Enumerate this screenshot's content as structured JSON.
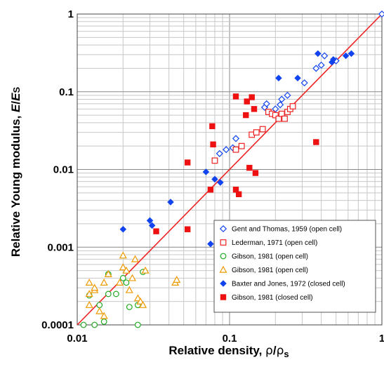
{
  "chart_data": {
    "type": "scatter",
    "x_scale": "log",
    "y_scale": "log",
    "xlim": [
      0.01,
      1
    ],
    "ylim": [
      0.0001,
      1
    ],
    "grid": true,
    "legend_position": "bottom-right",
    "x_ticks": [
      "0.01",
      "0.1",
      "1"
    ],
    "y_ticks": [
      "0.0001",
      "0.001",
      "0.01",
      "0.1",
      "1"
    ],
    "xlabel_parts": {
      "main": "Relative density, ",
      "rho": "ρ",
      "slash": "/",
      "rho_s": "ρ",
      "sub": "s"
    },
    "ylabel_parts": {
      "main": "Relative Young modulus, ",
      "e": "E",
      "slash": "/",
      "es": "E",
      "sub": "S"
    },
    "fit_line": {
      "from": [
        0.01,
        0.0001
      ],
      "to": [
        1,
        1
      ],
      "color": "#ee2222"
    },
    "series": [
      {
        "name": "Gent and Thomas, 1959 (open cell)",
        "marker": "diamond-open",
        "color": "#1144ee",
        "points": [
          [
            0.086,
            0.016
          ],
          [
            0.095,
            0.018
          ],
          [
            0.105,
            0.019
          ],
          [
            0.11,
            0.025
          ],
          [
            0.17,
            0.063
          ],
          [
            0.175,
            0.07
          ],
          [
            0.2,
            0.06
          ],
          [
            0.215,
            0.068
          ],
          [
            0.22,
            0.08
          ],
          [
            0.24,
            0.09
          ],
          [
            0.31,
            0.13
          ],
          [
            0.37,
            0.2
          ],
          [
            0.4,
            0.22
          ],
          [
            0.42,
            0.29
          ],
          [
            0.5,
            0.25
          ],
          [
            1.0,
            1.0
          ]
        ]
      },
      {
        "name": "Lederman, 1971 (open cell)",
        "marker": "square-open",
        "color": "#ee2222",
        "points": [
          [
            0.08,
            0.013
          ],
          [
            0.11,
            0.018
          ],
          [
            0.12,
            0.02
          ],
          [
            0.14,
            0.028
          ],
          [
            0.15,
            0.03
          ],
          [
            0.165,
            0.033
          ],
          [
            0.18,
            0.055
          ],
          [
            0.19,
            0.052
          ],
          [
            0.2,
            0.05
          ],
          [
            0.21,
            0.045
          ],
          [
            0.22,
            0.052
          ],
          [
            0.23,
            0.045
          ],
          [
            0.24,
            0.055
          ],
          [
            0.25,
            0.06
          ],
          [
            0.26,
            0.065
          ]
        ]
      },
      {
        "name": "Gibson, 1981 (open cell)",
        "marker": "circle-open",
        "color": "#22aa22",
        "points": [
          [
            0.011,
            0.0001
          ],
          [
            0.012,
            0.00024
          ],
          [
            0.013,
            0.0001
          ],
          [
            0.014,
            0.00018
          ],
          [
            0.015,
            0.00011
          ],
          [
            0.016,
            0.00025
          ],
          [
            0.016,
            0.00045
          ],
          [
            0.018,
            0.00025
          ],
          [
            0.02,
            0.0004
          ],
          [
            0.021,
            0.00035
          ],
          [
            0.022,
            0.00017
          ],
          [
            0.025,
            0.00018
          ],
          [
            0.025,
            0.0001
          ],
          [
            0.027,
            0.00048
          ]
        ]
      },
      {
        "name": "Gibson, 1981 (open cell)",
        "marker": "triangle-open",
        "color": "#ee9900",
        "points": [
          [
            0.012,
            0.00035
          ],
          [
            0.012,
            0.00025
          ],
          [
            0.012,
            0.00018
          ],
          [
            0.013,
            0.00028
          ],
          [
            0.013,
            0.0003
          ],
          [
            0.014,
            0.00015
          ],
          [
            0.015,
            0.00013
          ],
          [
            0.015,
            0.00035
          ],
          [
            0.016,
            0.00045
          ],
          [
            0.019,
            0.00035
          ],
          [
            0.02,
            0.00055
          ],
          [
            0.02,
            0.00078
          ],
          [
            0.021,
            0.0005
          ],
          [
            0.022,
            0.00028
          ],
          [
            0.023,
            0.0004
          ],
          [
            0.024,
            0.0007
          ],
          [
            0.025,
            0.00022
          ],
          [
            0.026,
            0.0002
          ],
          [
            0.027,
            0.00018
          ],
          [
            0.028,
            0.0005
          ],
          [
            0.044,
            0.00035
          ],
          [
            0.045,
            0.00038
          ]
        ]
      },
      {
        "name": "Baxter and Jones, 1972 (closed cell)",
        "marker": "diamond-filled",
        "color": "#1144ee",
        "points": [
          [
            0.02,
            0.0017
          ],
          [
            0.03,
            0.0022
          ],
          [
            0.031,
            0.0019
          ],
          [
            0.041,
            0.0038
          ],
          [
            0.07,
            0.0093
          ],
          [
            0.075,
            0.0011
          ],
          [
            0.08,
            0.0075
          ],
          [
            0.087,
            0.0068
          ],
          [
            0.21,
            0.15
          ],
          [
            0.28,
            0.15
          ],
          [
            0.38,
            0.31
          ],
          [
            0.47,
            0.24
          ],
          [
            0.48,
            0.26
          ],
          [
            0.58,
            0.29
          ],
          [
            0.63,
            0.31
          ]
        ]
      },
      {
        "name": "Gibson, 1981 (closed cell)",
        "marker": "square-filled",
        "color": "#ee1111",
        "points": [
          [
            0.033,
            0.0016
          ],
          [
            0.053,
            0.0123
          ],
          [
            0.053,
            0.0017
          ],
          [
            0.075,
            0.0055
          ],
          [
            0.077,
            0.036
          ],
          [
            0.078,
            0.021
          ],
          [
            0.11,
            0.087
          ],
          [
            0.11,
            0.0055
          ],
          [
            0.115,
            0.0048
          ],
          [
            0.128,
            0.05
          ],
          [
            0.13,
            0.075
          ],
          [
            0.135,
            0.0105
          ],
          [
            0.14,
            0.085
          ],
          [
            0.145,
            0.06
          ],
          [
            0.148,
            0.009
          ],
          [
            0.37,
            0.0225
          ]
        ]
      }
    ]
  }
}
